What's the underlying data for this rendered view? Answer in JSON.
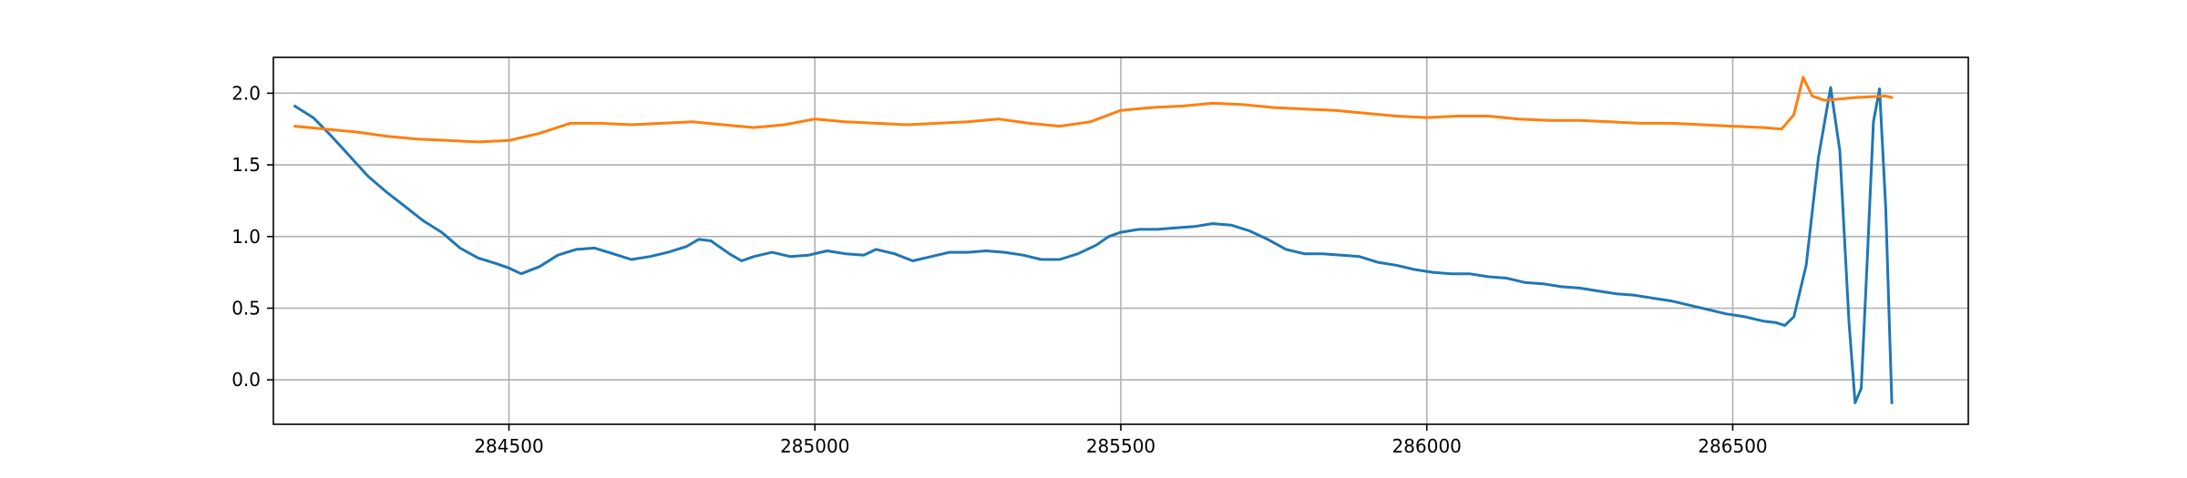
{
  "chart_data": {
    "type": "line",
    "title": "",
    "xlabel": "",
    "ylabel": "",
    "xlim": [
      284115,
      286885
    ],
    "ylim": [
      -0.31,
      2.25
    ],
    "grid": true,
    "legend": "none",
    "xticks": [
      284500,
      285000,
      285500,
      286000,
      286500
    ],
    "xtick_labels": [
      "284500",
      "285000",
      "285500",
      "286000",
      "286500"
    ],
    "yticks": [
      0.0,
      0.5,
      1.0,
      1.5,
      2.0
    ],
    "ytick_labels": [
      "0.0",
      "0.5",
      "1.0",
      "1.5",
      "2.0"
    ],
    "series": [
      {
        "color": "#1f77b4",
        "x": [
          284150,
          284180,
          284210,
          284240,
          284270,
          284300,
          284330,
          284360,
          284390,
          284420,
          284450,
          284480,
          284500,
          284520,
          284550,
          284580,
          284610,
          284640,
          284670,
          284700,
          284730,
          284760,
          284790,
          284810,
          284830,
          284860,
          284880,
          284900,
          284930,
          284960,
          284990,
          285020,
          285050,
          285080,
          285100,
          285130,
          285160,
          285190,
          285220,
          285250,
          285280,
          285310,
          285340,
          285370,
          285400,
          285430,
          285460,
          285480,
          285500,
          285530,
          285560,
          285590,
          285620,
          285650,
          285680,
          285710,
          285740,
          285770,
          285800,
          285830,
          285860,
          285890,
          285920,
          285950,
          285980,
          286010,
          286040,
          286070,
          286100,
          286130,
          286160,
          286190,
          286220,
          286250,
          286280,
          286310,
          286340,
          286370,
          286400,
          286430,
          286460,
          286490,
          286520,
          286550,
          286570,
          286585,
          286600,
          286620,
          286640,
          286660,
          286675,
          286690,
          286700,
          286710,
          286720,
          286730,
          286740,
          286750,
          286760
        ],
        "y": [
          1.91,
          1.83,
          1.7,
          1.56,
          1.42,
          1.31,
          1.21,
          1.11,
          1.03,
          0.92,
          0.85,
          0.81,
          0.78,
          0.74,
          0.79,
          0.87,
          0.91,
          0.92,
          0.88,
          0.84,
          0.86,
          0.89,
          0.93,
          0.98,
          0.97,
          0.88,
          0.83,
          0.86,
          0.89,
          0.86,
          0.87,
          0.9,
          0.88,
          0.87,
          0.91,
          0.88,
          0.83,
          0.86,
          0.89,
          0.89,
          0.9,
          0.89,
          0.87,
          0.84,
          0.84,
          0.88,
          0.94,
          1.0,
          1.03,
          1.05,
          1.05,
          1.06,
          1.07,
          1.09,
          1.08,
          1.04,
          0.98,
          0.91,
          0.88,
          0.88,
          0.87,
          0.86,
          0.82,
          0.8,
          0.77,
          0.75,
          0.74,
          0.74,
          0.72,
          0.71,
          0.68,
          0.67,
          0.65,
          0.64,
          0.62,
          0.6,
          0.59,
          0.57,
          0.55,
          0.52,
          0.49,
          0.46,
          0.44,
          0.41,
          0.4,
          0.38,
          0.44,
          0.8,
          1.55,
          2.04,
          1.6,
          0.4,
          -0.16,
          -0.06,
          0.85,
          1.8,
          2.03,
          1.2,
          -0.16
        ]
      },
      {
        "color": "#ff7f0e",
        "x": [
          284150,
          284200,
          284250,
          284300,
          284350,
          284400,
          284450,
          284500,
          284550,
          284600,
          284650,
          284700,
          284750,
          284800,
          284850,
          284900,
          284950,
          285000,
          285050,
          285100,
          285150,
          285200,
          285250,
          285300,
          285350,
          285400,
          285450,
          285500,
          285550,
          285600,
          285650,
          285700,
          285750,
          285800,
          285850,
          285900,
          285950,
          286000,
          286050,
          286100,
          286150,
          286200,
          286250,
          286300,
          286350,
          286400,
          286450,
          286500,
          286550,
          286580,
          286600,
          286615,
          286630,
          286650,
          286700,
          286750,
          286760
        ],
        "y": [
          1.77,
          1.75,
          1.73,
          1.7,
          1.68,
          1.67,
          1.66,
          1.67,
          1.72,
          1.79,
          1.79,
          1.78,
          1.79,
          1.8,
          1.78,
          1.76,
          1.78,
          1.82,
          1.8,
          1.79,
          1.78,
          1.79,
          1.8,
          1.82,
          1.79,
          1.77,
          1.8,
          1.88,
          1.9,
          1.91,
          1.93,
          1.92,
          1.9,
          1.89,
          1.88,
          1.86,
          1.84,
          1.83,
          1.84,
          1.84,
          1.82,
          1.81,
          1.81,
          1.8,
          1.79,
          1.79,
          1.78,
          1.77,
          1.76,
          1.75,
          1.85,
          2.11,
          1.98,
          1.95,
          1.97,
          1.98,
          1.97
        ]
      }
    ]
  }
}
